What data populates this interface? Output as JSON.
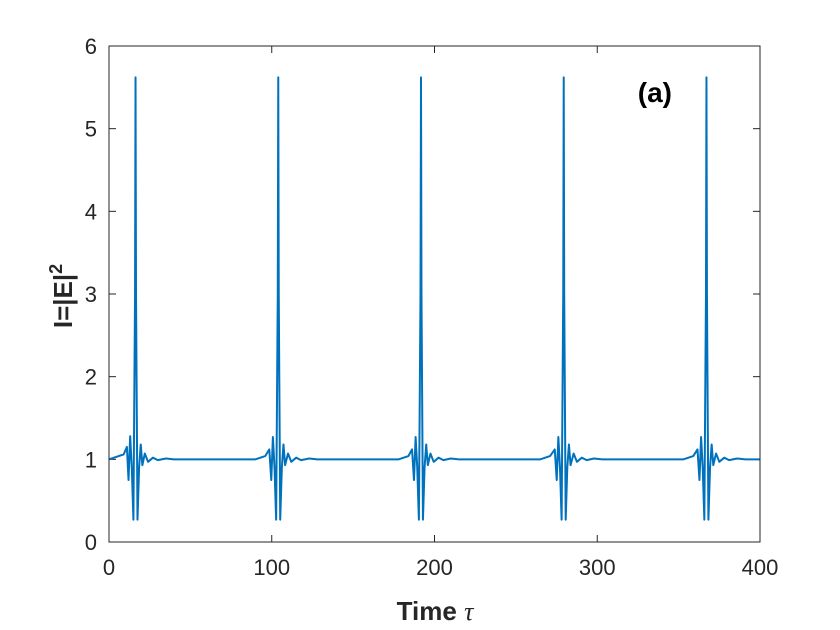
{
  "chart_data": {
    "type": "line",
    "title": "",
    "panel_label": "(a)",
    "xlabel": "Time",
    "xlabel_symbol": "τ",
    "ylabel": "I=|E|",
    "ylabel_superscript": "2",
    "xlim": [
      0,
      400
    ],
    "ylim": [
      0,
      6
    ],
    "xticks": [
      0,
      100,
      200,
      300,
      400
    ],
    "yticks": [
      0,
      1,
      2,
      3,
      4,
      5,
      6
    ],
    "grid": false,
    "line_color": "#0072BD",
    "series": [
      {
        "pulse_peak_times": [
          16.3,
          104.0,
          191.7,
          279.4,
          367.1
        ],
        "peak_intensity": 5.62,
        "min_intensity": 0.27,
        "baseline_intensity": 1.0,
        "x": [
          0,
          3,
          6,
          9,
          11,
          12,
          13,
          14,
          15,
          16,
          16.3,
          16.6,
          17.5,
          18.5,
          19.5,
          20.5,
          22,
          24,
          27,
          30,
          35,
          40,
          60,
          90,
          93,
          96,
          98.5,
          99.7,
          100.7,
          101.7,
          102.7,
          103.7,
          104.0,
          104.3,
          105.2,
          106.2,
          107.2,
          108.2,
          110,
          112,
          115,
          118,
          123,
          128,
          150,
          178,
          181,
          184,
          186.2,
          187.4,
          188.4,
          189.4,
          190.4,
          191.4,
          191.7,
          192.0,
          192.9,
          193.9,
          194.9,
          195.9,
          197.5,
          199.5,
          202.5,
          205.5,
          210,
          215,
          240,
          265,
          268,
          271,
          273.9,
          275.1,
          276.1,
          277.1,
          278.1,
          279.1,
          279.4,
          279.7,
          280.6,
          281.6,
          282.6,
          283.6,
          285.5,
          287.5,
          290.5,
          293.5,
          298,
          303,
          330,
          353,
          356,
          359,
          361.6,
          362.8,
          363.8,
          364.8,
          365.8,
          366.8,
          367.1,
          367.4,
          368.3,
          369.3,
          370.3,
          371.3,
          373,
          375,
          378,
          381,
          386,
          391,
          400
        ],
        "y": [
          1.0,
          1.02,
          1.04,
          1.06,
          1.15,
          0.75,
          1.28,
          0.9,
          0.27,
          3.0,
          5.62,
          3.0,
          0.27,
          0.9,
          1.18,
          0.93,
          1.07,
          0.97,
          1.02,
          0.99,
          1.01,
          1.0,
          1.0,
          1.0,
          1.02,
          1.04,
          1.12,
          0.75,
          1.27,
          0.9,
          0.27,
          3.0,
          5.62,
          3.0,
          0.27,
          0.9,
          1.18,
          0.93,
          1.07,
          0.97,
          1.02,
          0.99,
          1.01,
          1.0,
          1.0,
          1.0,
          1.02,
          1.04,
          1.12,
          0.75,
          1.27,
          0.9,
          0.27,
          3.0,
          5.62,
          3.0,
          0.27,
          0.9,
          1.18,
          0.93,
          1.07,
          0.97,
          1.02,
          0.99,
          1.01,
          1.0,
          1.0,
          1.0,
          1.02,
          1.04,
          1.12,
          0.75,
          1.27,
          0.9,
          0.27,
          3.0,
          5.62,
          3.0,
          0.27,
          0.9,
          1.18,
          0.93,
          1.07,
          0.97,
          1.02,
          0.99,
          1.01,
          1.0,
          1.0,
          1.0,
          1.02,
          1.04,
          1.12,
          0.75,
          1.27,
          0.9,
          0.27,
          3.0,
          5.62,
          3.0,
          0.27,
          0.9,
          1.18,
          0.93,
          1.07,
          0.97,
          1.02,
          0.99,
          1.01,
          1.0,
          1.0
        ]
      }
    ]
  }
}
